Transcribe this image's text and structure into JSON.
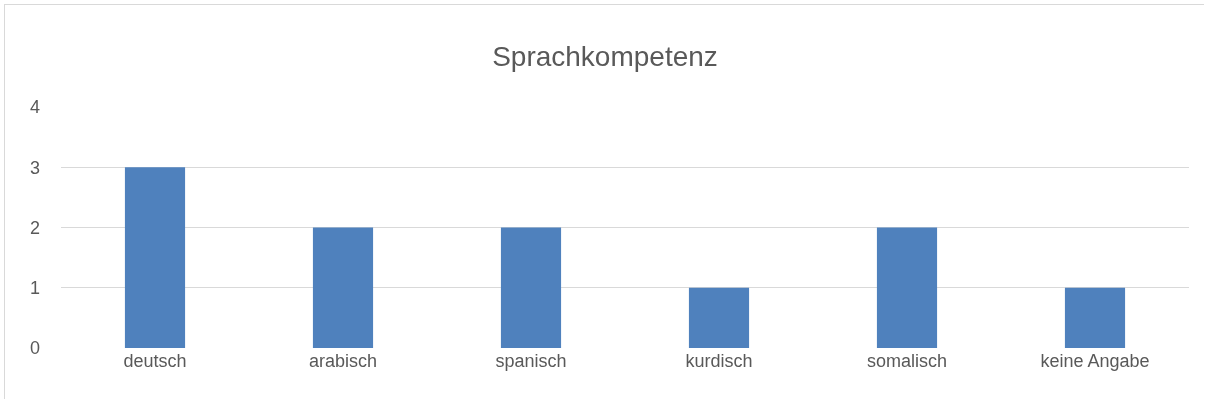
{
  "chart_data": {
    "type": "bar",
    "title": "Sprachkompetenz",
    "categories": [
      "deutsch",
      "arabisch",
      "spanisch",
      "kurdisch",
      "somalisch",
      "keine Angabe"
    ],
    "values": [
      3,
      2,
      2,
      1,
      2,
      1
    ],
    "color": "#4f81bd",
    "ylim": [
      0,
      4
    ],
    "yticks": [
      0,
      1,
      2,
      3,
      4
    ],
    "grid": "y",
    "legend": false
  }
}
